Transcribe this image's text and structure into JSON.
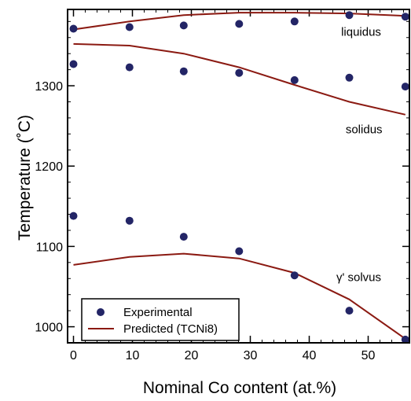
{
  "chart_data": {
    "type": "scatter",
    "xlabel": "Nominal Co content (at.%)",
    "ylabel": "Temperature (˚C)",
    "xlim": [
      -1,
      57
    ],
    "ylim": [
      980,
      1395
    ],
    "xticks": [
      0,
      10,
      20,
      30,
      40,
      50
    ],
    "yticks": [
      1000,
      1100,
      1200,
      1300
    ],
    "legend": {
      "placement": "bottom-left",
      "entries": [
        "Experimental",
        "Predicted (TCNi8)"
      ]
    },
    "annotations": [
      {
        "text": "liquidus",
        "x": 48.8,
        "y": 1362
      },
      {
        "text": "solidus",
        "x": 49.3,
        "y": 1241
      },
      {
        "text": "γ' solvus",
        "x": 48.4,
        "y": 1057
      }
    ],
    "series": [
      {
        "name": "Experimental",
        "kind": "points",
        "color": "#232566",
        "points": [
          [
            0,
            1371
          ],
          [
            9.5,
            1373
          ],
          [
            18.7,
            1375
          ],
          [
            28.1,
            1377
          ],
          [
            37.5,
            1380
          ],
          [
            46.8,
            1388
          ],
          [
            56.3,
            1386
          ],
          [
            0,
            1327
          ],
          [
            9.5,
            1323
          ],
          [
            18.7,
            1318
          ],
          [
            28.1,
            1316
          ],
          [
            37.5,
            1307
          ],
          [
            46.8,
            1310
          ],
          [
            56.3,
            1299
          ],
          [
            0,
            1138
          ],
          [
            9.5,
            1132
          ],
          [
            18.7,
            1112
          ],
          [
            28.1,
            1094
          ],
          [
            37.5,
            1064
          ],
          [
            46.8,
            1020
          ],
          [
            56.3,
            984
          ]
        ]
      },
      {
        "name": "Predicted (TCNi8)",
        "kind": "lines",
        "color": "#8b1a12",
        "lines": [
          [
            [
              0,
              1370
            ],
            [
              9.5,
              1380
            ],
            [
              18.7,
              1388
            ],
            [
              28.1,
              1391
            ],
            [
              37.5,
              1391
            ],
            [
              46.8,
              1390
            ],
            [
              56.3,
              1387
            ]
          ],
          [
            [
              0,
              1352
            ],
            [
              9.5,
              1350
            ],
            [
              18.7,
              1340
            ],
            [
              28.1,
              1323
            ],
            [
              37.5,
              1301
            ],
            [
              46.8,
              1280
            ],
            [
              56.3,
              1264
            ]
          ],
          [
            [
              0,
              1077
            ],
            [
              9.5,
              1087
            ],
            [
              18.7,
              1091
            ],
            [
              28.1,
              1085
            ],
            [
              37.5,
              1067
            ],
            [
              46.8,
              1034
            ],
            [
              56.3,
              985
            ]
          ]
        ]
      }
    ]
  }
}
